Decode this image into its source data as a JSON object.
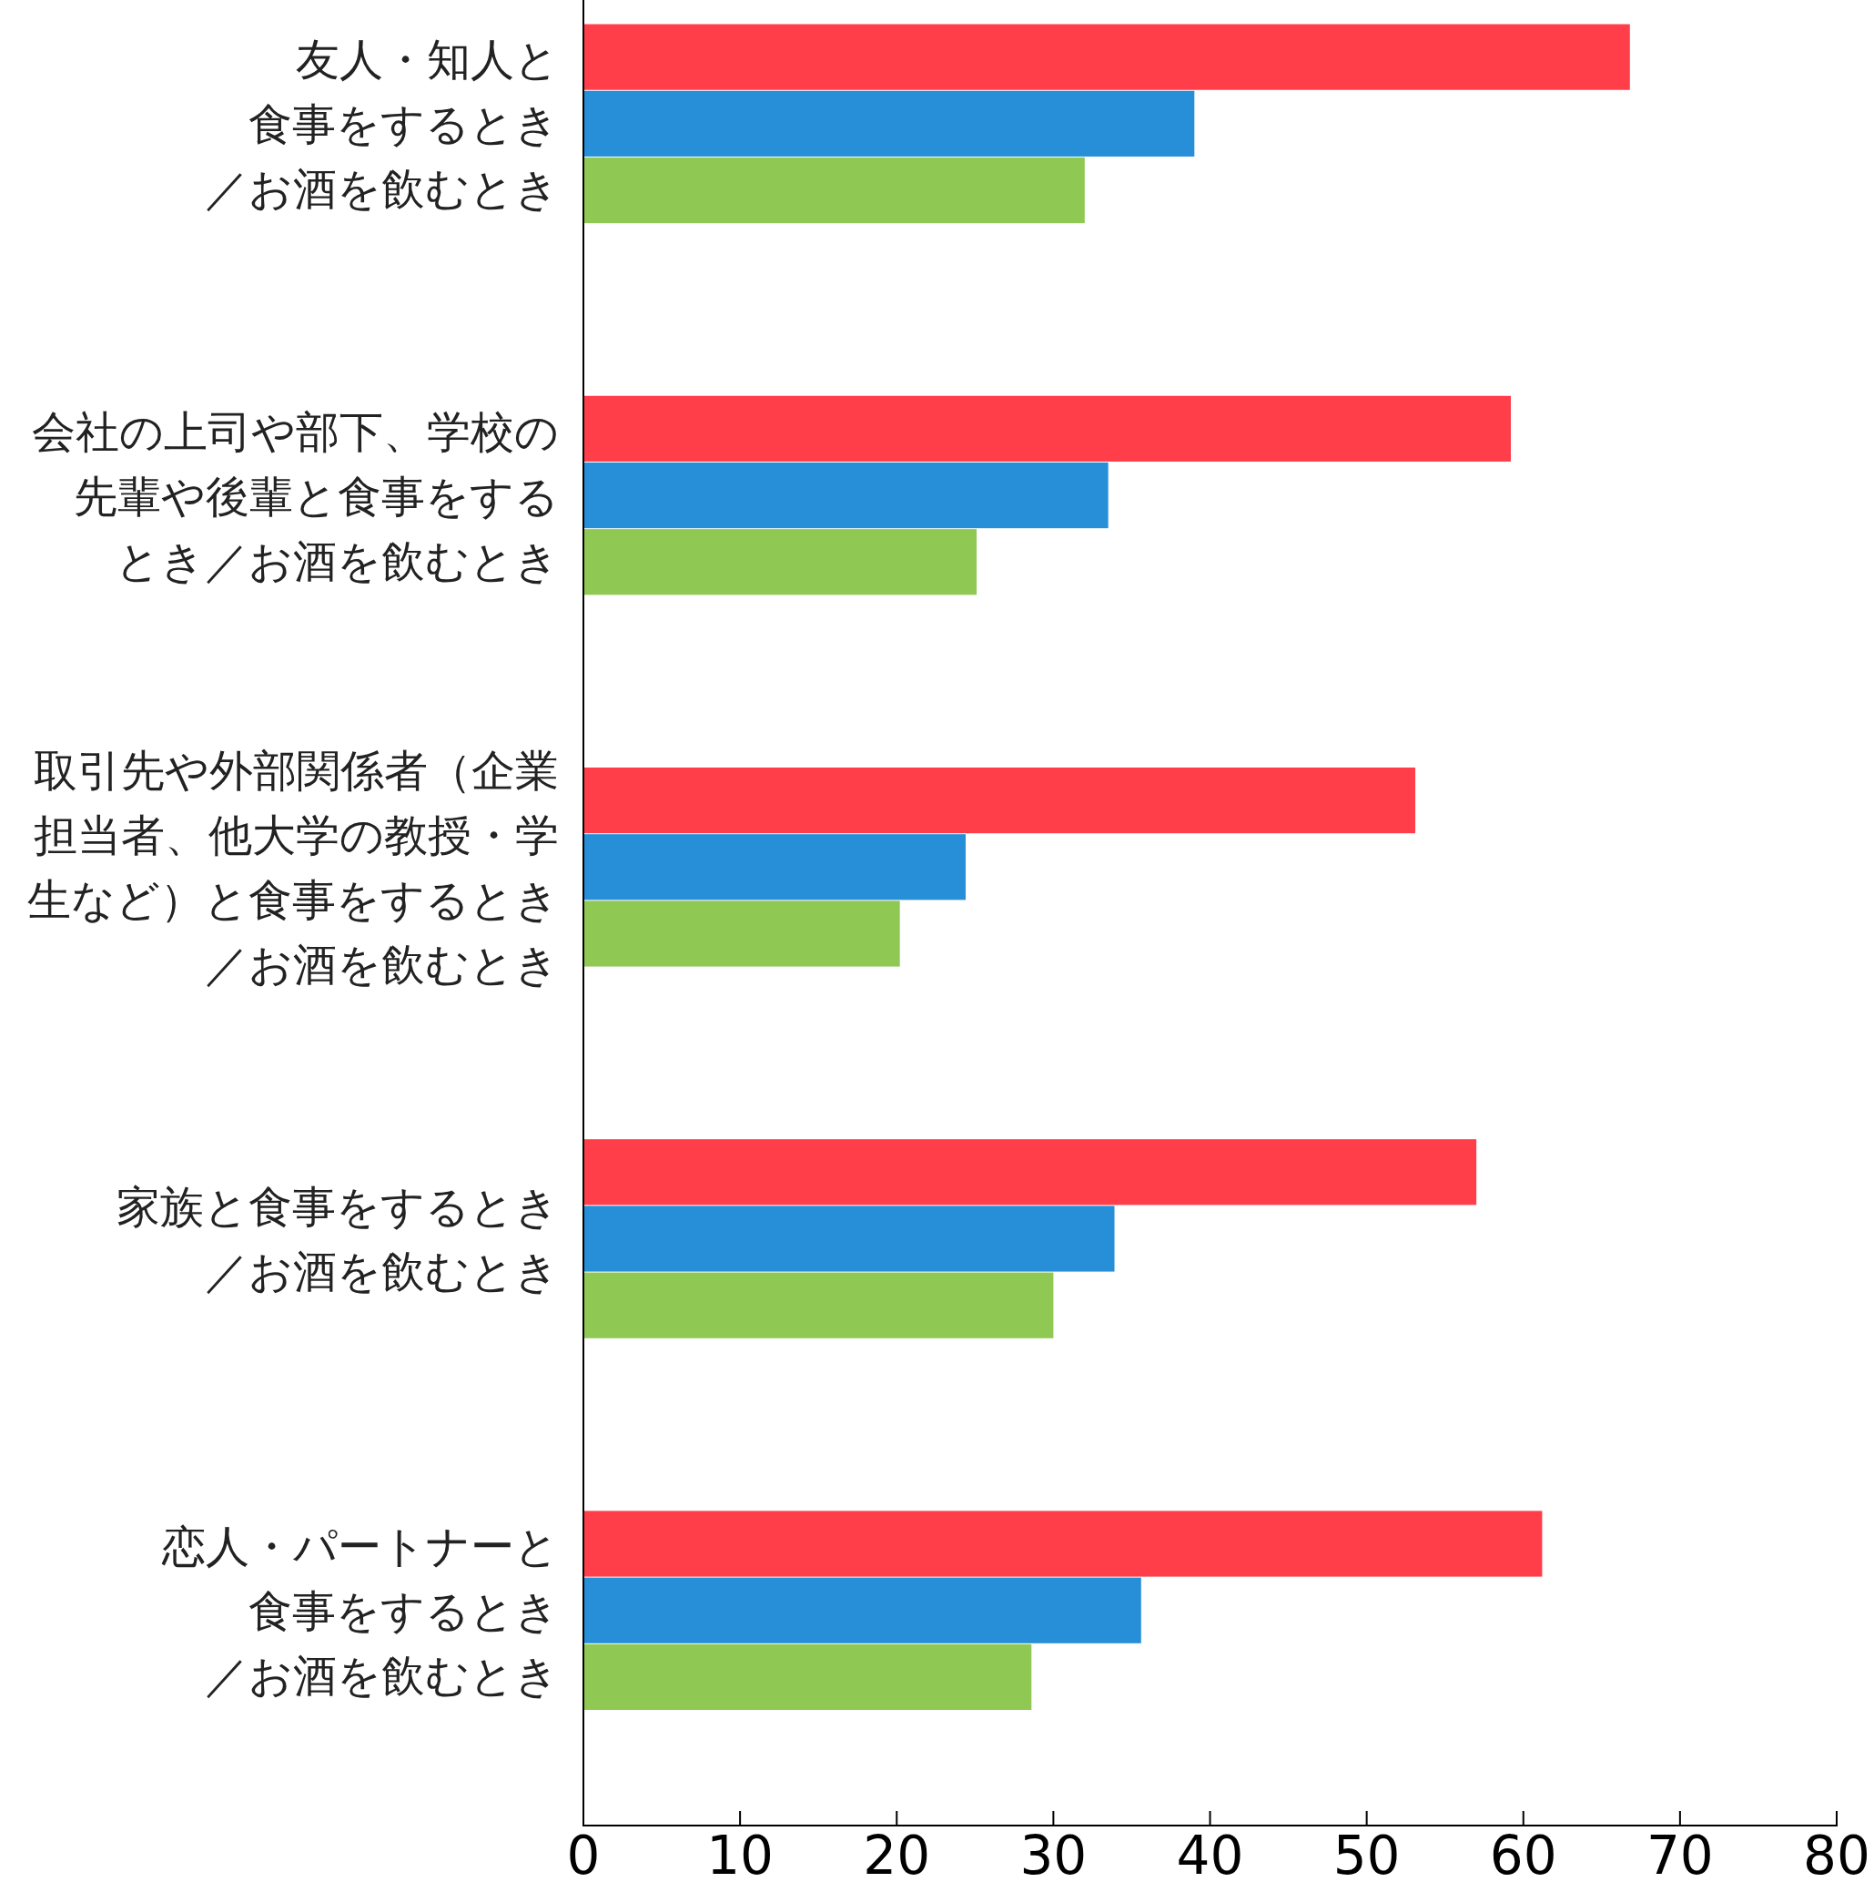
{
  "chart_data": {
    "type": "bar",
    "orientation": "horizontal",
    "categories": [
      "友人・知人と食事をするとき／お酒を飲むとき",
      "会社の上司や部下、学校の先輩や後輩と食事をするとき／お酒を飲むとき",
      "取引先や外部関係者（企業担当者、他大学の教授・学生など）と食事をするとき／お酒を飲むとき",
      "家族と食事をするとき／お酒を飲むとき",
      "恋人・パートナーと食事をするとき／お酒を飲むとき"
    ],
    "series": [
      {
        "color": "#ff3e4a",
        "values": [
          66.8,
          59.2,
          53.1,
          57.0,
          61.2
        ]
      },
      {
        "color": "#268fd8",
        "values": [
          39.0,
          33.5,
          24.4,
          33.9,
          35.6
        ]
      },
      {
        "color": "#8fc852",
        "values": [
          32.0,
          25.1,
          20.2,
          30.0,
          28.6
        ]
      }
    ],
    "xlim": [
      0,
      80
    ],
    "xticks": [
      0,
      10,
      20,
      30,
      40,
      50,
      60,
      70,
      80
    ],
    "grid": false
  }
}
